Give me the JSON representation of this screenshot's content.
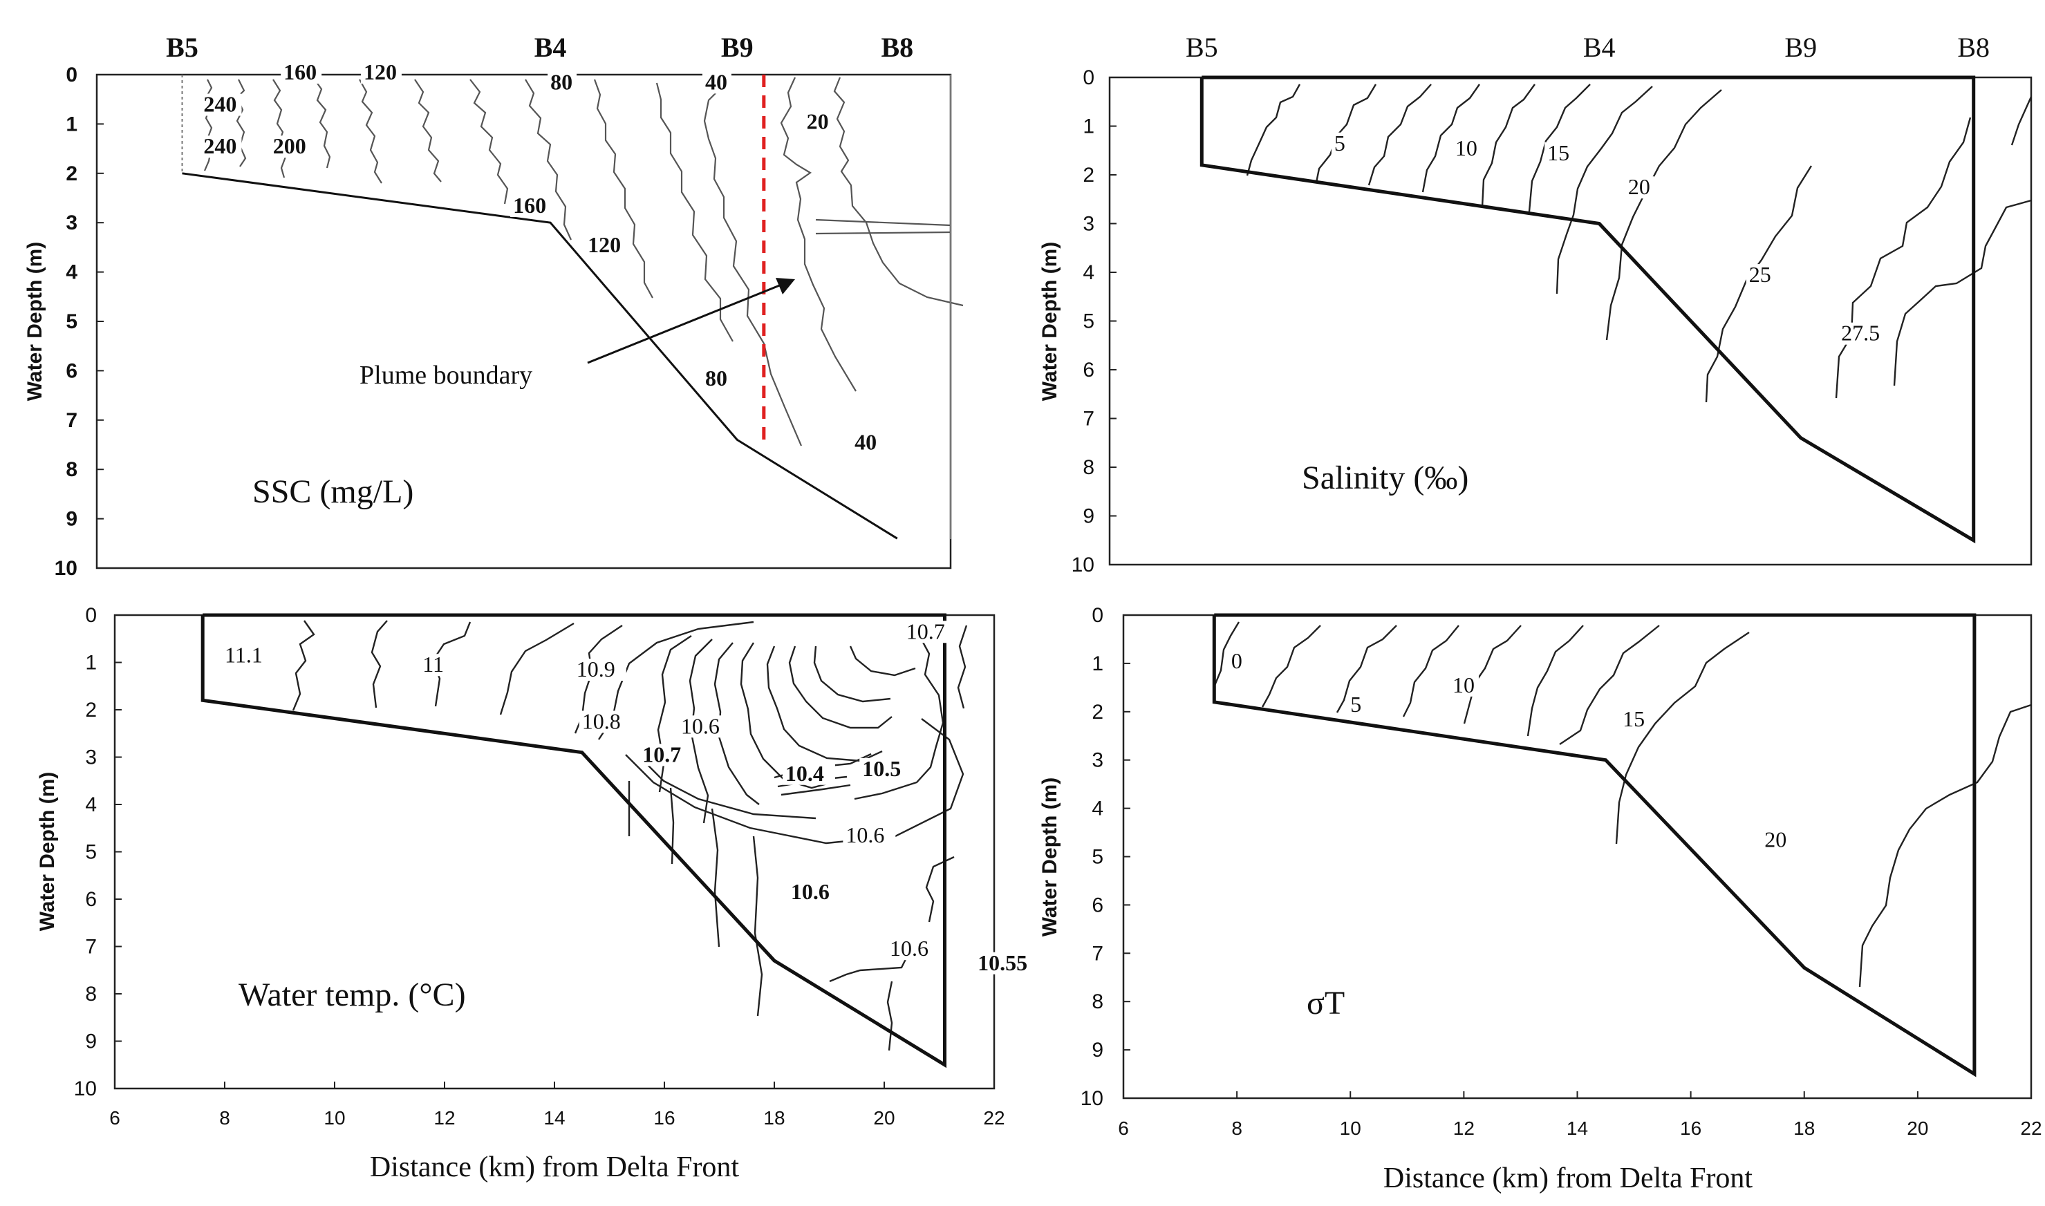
{
  "figure": {
    "x_axis_label": "Distance (km) from Delta Front",
    "y_axis_label": "Water Depth (m)",
    "annotation_plume": "Plume boundary"
  },
  "chart_data": [
    {
      "type": "contour",
      "title": "SSC (mg/L)",
      "xlabel": "",
      "ylabel": "Water Depth (m)",
      "xlim": [
        6,
        22
      ],
      "ylim": [
        10,
        0
      ],
      "yticks": [
        "0",
        "1",
        "2",
        "3",
        "4",
        "5",
        "6",
        "7",
        "8",
        "9",
        "10"
      ],
      "stations": [
        {
          "name": "B5",
          "km": 7.6
        },
        {
          "name": "B4",
          "km": 14.5
        },
        {
          "name": "B9",
          "km": 18.0
        },
        {
          "name": "B8",
          "km": 21.0
        }
      ],
      "bottom_profile": [
        [
          7.6,
          2.0
        ],
        [
          14.5,
          3.0
        ],
        [
          18.0,
          7.4
        ],
        [
          21.0,
          9.4
        ]
      ],
      "plume_boundary_km": 18.5,
      "contour_labels": [
        {
          "text": "160",
          "x": 9.5,
          "y": 0.1
        },
        {
          "text": "120",
          "x": 11.0,
          "y": 0.1
        },
        {
          "text": "80",
          "x": 14.5,
          "y": 0.3
        },
        {
          "text": "40",
          "x": 17.4,
          "y": 0.3
        },
        {
          "text": "240",
          "x": 8.0,
          "y": 0.75
        },
        {
          "text": "240",
          "x": 8.0,
          "y": 1.6
        },
        {
          "text": "200",
          "x": 9.3,
          "y": 1.6
        },
        {
          "text": "20",
          "x": 19.3,
          "y": 1.1
        },
        {
          "text": "160",
          "x": 13.8,
          "y": 2.8
        },
        {
          "text": "120",
          "x": 15.2,
          "y": 3.6
        },
        {
          "text": "80",
          "x": 17.4,
          "y": 6.3
        },
        {
          "text": "40",
          "x": 20.2,
          "y": 7.6
        }
      ]
    },
    {
      "type": "contour",
      "title": "Salinity (‰)",
      "xlabel": "",
      "ylabel": "Water Depth (m)",
      "xlim": [
        6,
        22
      ],
      "ylim": [
        10,
        0
      ],
      "yticks": [
        "0",
        "1",
        "2",
        "3",
        "4",
        "5",
        "6",
        "7",
        "8",
        "9",
        "10"
      ],
      "stations": [
        {
          "name": "B5",
          "km": 7.6
        },
        {
          "name": "B4",
          "km": 14.5
        },
        {
          "name": "B9",
          "km": 18.0
        },
        {
          "name": "B8",
          "km": 21.0
        }
      ],
      "bottom_profile": [
        [
          7.6,
          1.8
        ],
        [
          14.5,
          3.0
        ],
        [
          18.0,
          7.4
        ],
        [
          21.0,
          9.5
        ]
      ],
      "contour_labels": [
        {
          "text": "5",
          "x": 9.9,
          "y": 1.5
        },
        {
          "text": "10",
          "x": 12.0,
          "y": 1.6
        },
        {
          "text": "15",
          "x": 13.6,
          "y": 1.7
        },
        {
          "text": "20",
          "x": 15.0,
          "y": 2.4
        },
        {
          "text": "25",
          "x": 17.1,
          "y": 4.2
        },
        {
          "text": "27.5",
          "x": 18.7,
          "y": 5.4
        }
      ]
    },
    {
      "type": "contour",
      "title": "Water temp. (°C)",
      "xlabel": "Distance (km) from Delta Front",
      "ylabel": "Water Depth (m)",
      "xlim": [
        6,
        22
      ],
      "ylim": [
        10,
        0
      ],
      "xticks": [
        "6",
        "8",
        "10",
        "12",
        "14",
        "16",
        "18",
        "20",
        "22"
      ],
      "yticks": [
        "0",
        "1",
        "2",
        "3",
        "4",
        "5",
        "6",
        "7",
        "8",
        "9",
        "10"
      ],
      "bottom_profile": [
        [
          7.6,
          1.8
        ],
        [
          14.5,
          2.9
        ],
        [
          18.0,
          7.3
        ],
        [
          21.1,
          9.5
        ]
      ],
      "contour_labels": [
        {
          "text": "11.1",
          "x": 8.0,
          "y": 1.0
        },
        {
          "text": "11",
          "x": 11.6,
          "y": 1.2
        },
        {
          "text": "10.9",
          "x": 14.4,
          "y": 1.3
        },
        {
          "text": "10.7",
          "x": 20.4,
          "y": 0.5
        },
        {
          "text": "10.8",
          "x": 14.5,
          "y": 2.4
        },
        {
          "text": "10.6",
          "x": 16.3,
          "y": 2.5
        },
        {
          "text": "10.7",
          "x": 15.6,
          "y": 3.1
        },
        {
          "text": "10.4",
          "x": 18.2,
          "y": 3.5
        },
        {
          "text": "10.5",
          "x": 19.6,
          "y": 3.4
        },
        {
          "text": "10.6",
          "x": 19.3,
          "y": 4.8
        },
        {
          "text": "10.6",
          "x": 18.3,
          "y": 6.0
        },
        {
          "text": "10.6",
          "x": 20.1,
          "y": 7.2
        },
        {
          "text": "10.55",
          "x": 21.7,
          "y": 7.5
        }
      ]
    },
    {
      "type": "contour",
      "title": "σT",
      "xlabel": "Distance (km) from Delta Front",
      "ylabel": "Water Depth (m)",
      "xlim": [
        6,
        22
      ],
      "ylim": [
        10,
        0
      ],
      "xticks": [
        "6",
        "8",
        "10",
        "12",
        "14",
        "16",
        "18",
        "20",
        "22"
      ],
      "yticks": [
        "0",
        "1",
        "2",
        "3",
        "4",
        "5",
        "6",
        "7",
        "8",
        "9",
        "10"
      ],
      "bottom_profile": [
        [
          7.6,
          1.8
        ],
        [
          14.5,
          3.0
        ],
        [
          18.0,
          7.3
        ],
        [
          21.0,
          9.5
        ]
      ],
      "contour_labels": [
        {
          "text": "0",
          "x": 7.9,
          "y": 1.1
        },
        {
          "text": "5",
          "x": 10.0,
          "y": 2.0
        },
        {
          "text": "10",
          "x": 11.8,
          "y": 1.6
        },
        {
          "text": "15",
          "x": 14.8,
          "y": 2.3
        },
        {
          "text": "20",
          "x": 17.3,
          "y": 4.8
        }
      ]
    }
  ]
}
